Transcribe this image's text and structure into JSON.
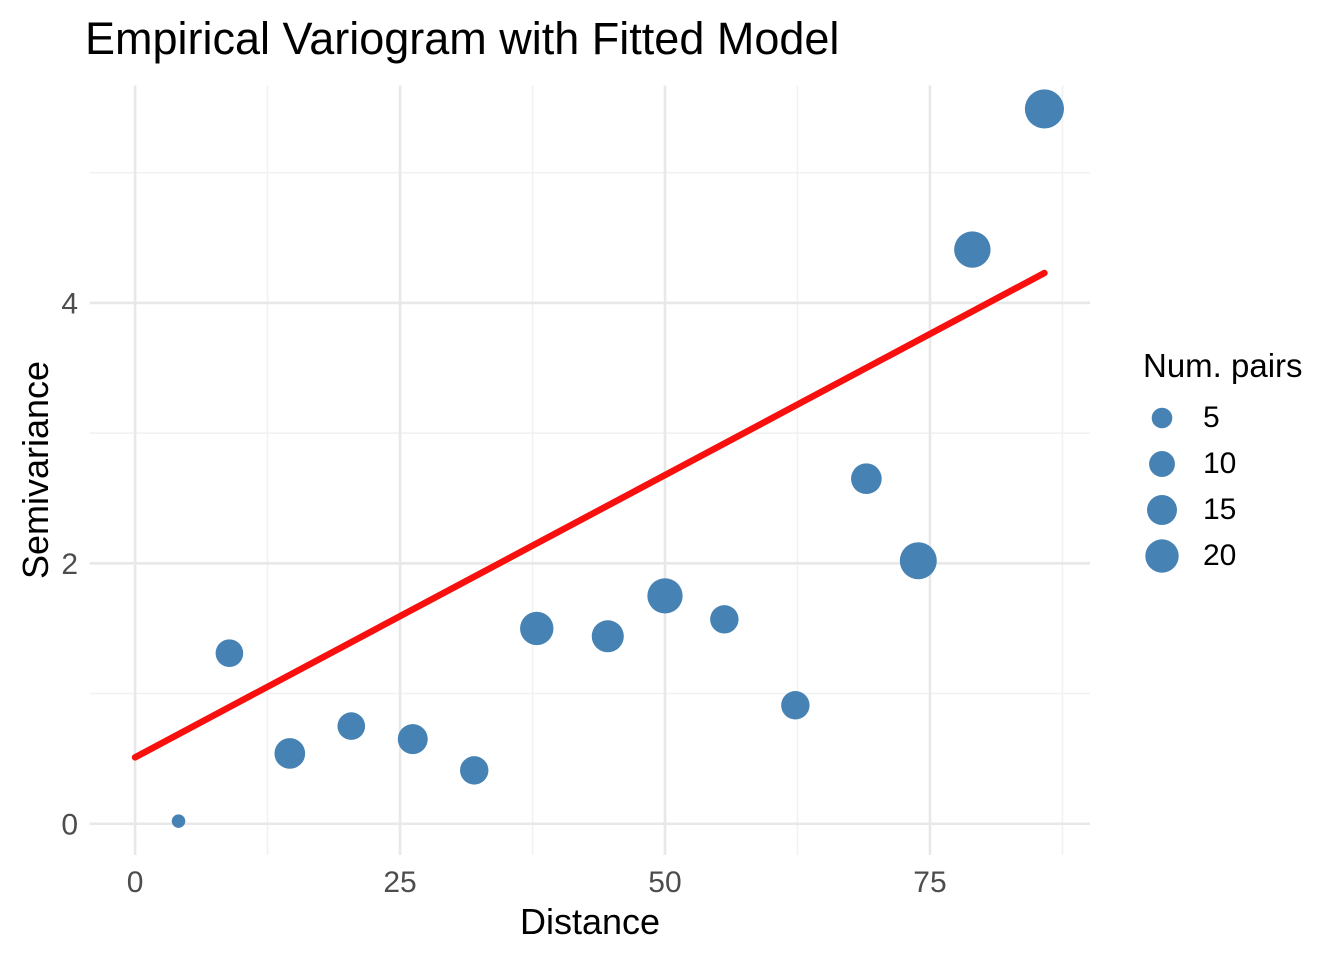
{
  "chart": {
    "title": "Empirical Variogram with Fitted Model",
    "xlabel": "Distance",
    "ylabel": "Semivariance",
    "legend": {
      "title": "Num. pairs"
    }
  },
  "chart_data": {
    "type": "scatter",
    "title": "Empirical Variogram with Fitted Model",
    "xlabel": "Distance",
    "ylabel": "Semivariance",
    "xlim": [
      -4.3,
      90.1
    ],
    "ylim": [
      -0.24,
      5.67
    ],
    "x_ticks": [
      0,
      25,
      50,
      75
    ],
    "y_ticks": [
      0,
      2,
      4
    ],
    "x_minor_gridlines": [
      12.5,
      37.5,
      62.5,
      87.5
    ],
    "y_minor_gridlines": [
      1,
      3,
      5
    ],
    "grid": "major-and-minor, no axis lines, no tick marks (theme_minimal)",
    "legend_position": "right",
    "size_legend": {
      "title": "Num. pairs",
      "values": [
        5,
        10,
        15,
        20
      ]
    },
    "series": [
      {
        "name": "empirical-variogram",
        "type": "scatter",
        "size_encoding": "num_pairs",
        "points": [
          {
            "distance": 4.1,
            "semivariance": 0.02,
            "num_pairs": 1
          },
          {
            "distance": 8.9,
            "semivariance": 1.31,
            "num_pairs": 12
          },
          {
            "distance": 14.6,
            "semivariance": 0.54,
            "num_pairs": 16
          },
          {
            "distance": 20.4,
            "semivariance": 0.75,
            "num_pairs": 12
          },
          {
            "distance": 26.2,
            "semivariance": 0.65,
            "num_pairs": 15
          },
          {
            "distance": 32.0,
            "semivariance": 0.41,
            "num_pairs": 13
          },
          {
            "distance": 37.9,
            "semivariance": 1.5,
            "num_pairs": 20
          },
          {
            "distance": 44.6,
            "semivariance": 1.44,
            "num_pairs": 18
          },
          {
            "distance": 50.0,
            "semivariance": 1.75,
            "num_pairs": 23
          },
          {
            "distance": 55.6,
            "semivariance": 1.57,
            "num_pairs": 13
          },
          {
            "distance": 62.3,
            "semivariance": 0.91,
            "num_pairs": 13
          },
          {
            "distance": 69.0,
            "semivariance": 2.65,
            "num_pairs": 16
          },
          {
            "distance": 73.9,
            "semivariance": 2.02,
            "num_pairs": 26
          },
          {
            "distance": 79.0,
            "semivariance": 4.41,
            "num_pairs": 25
          },
          {
            "distance": 85.8,
            "semivariance": 5.49,
            "num_pairs": 30
          }
        ]
      },
      {
        "name": "fitted-model",
        "type": "line",
        "x": [
          0,
          85.8
        ],
        "y": [
          0.51,
          4.23
        ]
      }
    ],
    "colors": {
      "points": "#4682B4",
      "fitted_line": "#F8100F",
      "tick_labels": "#4D4D4D",
      "gridline_major": "#E8E8E8",
      "gridline_minor": "#F1F1F1",
      "text": "#000000",
      "background": "#FFFFFF"
    }
  }
}
